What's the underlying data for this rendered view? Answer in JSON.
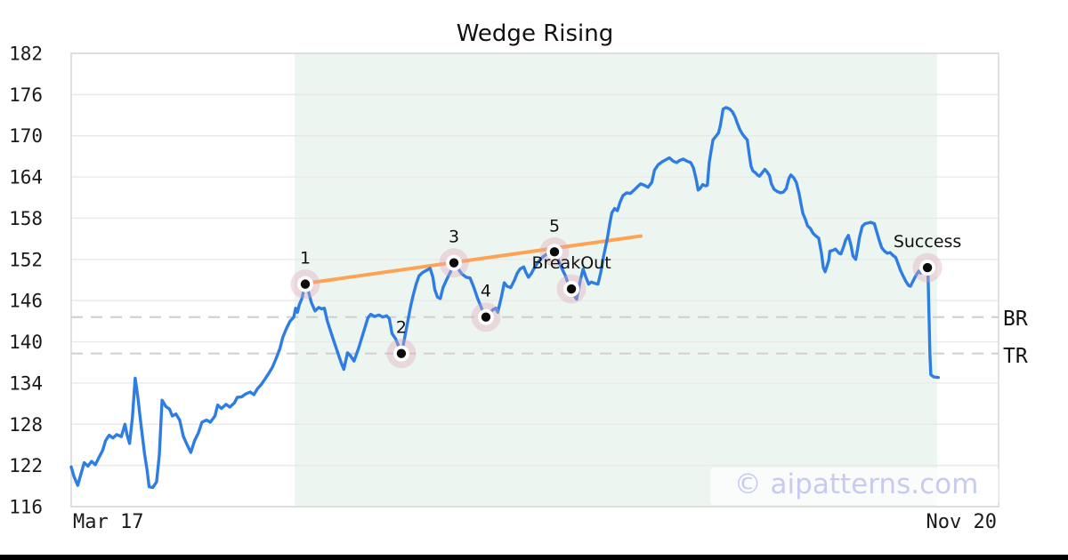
{
  "page": {
    "background": "#ffffff",
    "bottom_bar_color": "#000000"
  },
  "chart_data": {
    "type": "line",
    "title": "Wedge Rising",
    "x_axis": {
      "start_label": "Mar 17",
      "end_label": "Nov 20"
    },
    "y_axis": {
      "min": 116,
      "max": 182,
      "ticks": [
        182,
        176,
        170,
        164,
        158,
        152,
        146,
        140,
        134,
        128,
        122,
        116
      ]
    },
    "grid": true,
    "legend": "none",
    "watermark": "© aipatterns.com",
    "shaded_region": {
      "from_x": 0.2409,
      "to_x": 0.9338,
      "color": "#edf5f0"
    },
    "level_lines": [
      {
        "label": "BR",
        "value": 143.6
      },
      {
        "label": "TR",
        "value": 138.3
      }
    ],
    "trendline": {
      "color": "#ffa352",
      "from": [
        0.2524,
        148.5
      ],
      "to": [
        0.6142,
        155.4
      ]
    },
    "pattern_markers": [
      {
        "label": "1",
        "x": 0.2524,
        "value": 148.4
      },
      {
        "label": "2",
        "x": 0.356,
        "value": 138.3
      },
      {
        "label": "3",
        "x": 0.4127,
        "value": 151.5
      },
      {
        "label": "4",
        "x": 0.4472,
        "value": 143.6
      },
      {
        "label": "5",
        "x": 0.5211,
        "value": 153.1
      },
      {
        "label": "BreakOut",
        "x": 0.5394,
        "value": 147.7
      },
      {
        "label": "Success",
        "x": 0.9233,
        "value": 150.8
      }
    ],
    "series": [
      {
        "name": "price",
        "color": "#2e7de2",
        "points": [
          [
            0.0,
            121.8
          ],
          [
            0.003,
            120.4
          ],
          [
            0.007,
            119.1
          ],
          [
            0.011,
            121.0
          ],
          [
            0.014,
            122.4
          ],
          [
            0.018,
            121.9
          ],
          [
            0.022,
            122.6
          ],
          [
            0.026,
            122.1
          ],
          [
            0.03,
            123.2
          ],
          [
            0.034,
            124.2
          ],
          [
            0.037,
            125.6
          ],
          [
            0.041,
            126.4
          ],
          [
            0.045,
            126.0
          ],
          [
            0.049,
            126.5
          ],
          [
            0.054,
            126.2
          ],
          [
            0.058,
            128.0
          ],
          [
            0.06,
            126.6
          ],
          [
            0.063,
            125.2
          ],
          [
            0.066,
            129.0
          ],
          [
            0.069,
            134.7
          ],
          [
            0.072,
            131.8
          ],
          [
            0.075,
            128.3
          ],
          [
            0.079,
            123.8
          ],
          [
            0.082,
            121.2
          ],
          [
            0.084,
            118.9
          ],
          [
            0.088,
            118.8
          ],
          [
            0.092,
            119.6
          ],
          [
            0.095,
            123.5
          ],
          [
            0.098,
            131.5
          ],
          [
            0.102,
            130.6
          ],
          [
            0.106,
            130.2
          ],
          [
            0.109,
            129.2
          ],
          [
            0.113,
            129.5
          ],
          [
            0.117,
            128.6
          ],
          [
            0.121,
            126.2
          ],
          [
            0.125,
            125.0
          ],
          [
            0.129,
            123.9
          ],
          [
            0.133,
            125.6
          ],
          [
            0.137,
            126.7
          ],
          [
            0.141,
            128.3
          ],
          [
            0.146,
            128.6
          ],
          [
            0.15,
            128.3
          ],
          [
            0.155,
            129.2
          ],
          [
            0.158,
            130.8
          ],
          [
            0.162,
            130.3
          ],
          [
            0.167,
            130.9
          ],
          [
            0.171,
            130.5
          ],
          [
            0.176,
            131.1
          ],
          [
            0.179,
            131.9
          ],
          [
            0.184,
            132.0
          ],
          [
            0.188,
            132.4
          ],
          [
            0.193,
            132.7
          ],
          [
            0.197,
            132.3
          ],
          [
            0.201,
            133.2
          ],
          [
            0.205,
            133.8
          ],
          [
            0.209,
            134.6
          ],
          [
            0.213,
            135.4
          ],
          [
            0.217,
            136.3
          ],
          [
            0.221,
            137.6
          ],
          [
            0.225,
            139.0
          ],
          [
            0.228,
            140.6
          ],
          [
            0.232,
            141.9
          ],
          [
            0.236,
            143.0
          ],
          [
            0.24,
            143.6
          ],
          [
            0.242,
            144.9
          ],
          [
            0.244,
            144.3
          ],
          [
            0.246,
            145.4
          ],
          [
            0.249,
            146.4
          ],
          [
            0.252,
            148.4
          ],
          [
            0.256,
            147.2
          ],
          [
            0.259,
            145.7
          ],
          [
            0.263,
            144.5
          ],
          [
            0.267,
            145.0
          ],
          [
            0.27,
            144.8
          ],
          [
            0.273,
            144.9
          ],
          [
            0.276,
            143.1
          ],
          [
            0.28,
            141.4
          ],
          [
            0.284,
            139.8
          ],
          [
            0.288,
            138.2
          ],
          [
            0.291,
            137.0
          ],
          [
            0.294,
            136.0
          ],
          [
            0.298,
            138.4
          ],
          [
            0.301,
            138.0
          ],
          [
            0.305,
            137.2
          ],
          [
            0.31,
            139.1
          ],
          [
            0.315,
            141.3
          ],
          [
            0.32,
            143.5
          ],
          [
            0.323,
            144.0
          ],
          [
            0.327,
            143.7
          ],
          [
            0.332,
            143.9
          ],
          [
            0.336,
            143.6
          ],
          [
            0.34,
            143.8
          ],
          [
            0.343,
            143.4
          ],
          [
            0.346,
            141.2
          ],
          [
            0.35,
            140.4
          ],
          [
            0.353,
            139.4
          ],
          [
            0.356,
            138.3
          ],
          [
            0.359,
            140.2
          ],
          [
            0.363,
            143.0
          ],
          [
            0.366,
            145.2
          ],
          [
            0.369,
            146.9
          ],
          [
            0.372,
            148.4
          ],
          [
            0.375,
            149.6
          ],
          [
            0.379,
            150.1
          ],
          [
            0.383,
            150.4
          ],
          [
            0.387,
            150.7
          ],
          [
            0.39,
            149.4
          ],
          [
            0.392,
            147.6
          ],
          [
            0.395,
            146.5
          ],
          [
            0.398,
            146.3
          ],
          [
            0.401,
            147.9
          ],
          [
            0.405,
            149.1
          ],
          [
            0.409,
            150.2
          ],
          [
            0.413,
            151.5
          ],
          [
            0.417,
            150.7
          ],
          [
            0.421,
            149.9
          ],
          [
            0.426,
            149.4
          ],
          [
            0.43,
            149.3
          ],
          [
            0.434,
            148.0
          ],
          [
            0.438,
            146.4
          ],
          [
            0.441,
            145.4
          ],
          [
            0.444,
            144.4
          ],
          [
            0.447,
            143.6
          ],
          [
            0.451,
            144.2
          ],
          [
            0.455,
            144.7
          ],
          [
            0.458,
            144.9
          ],
          [
            0.46,
            144.3
          ],
          [
            0.464,
            146.6
          ],
          [
            0.467,
            148.6
          ],
          [
            0.47,
            148.1
          ],
          [
            0.474,
            147.9
          ],
          [
            0.478,
            149.0
          ],
          [
            0.481,
            150.0
          ],
          [
            0.484,
            150.6
          ],
          [
            0.488,
            150.9
          ],
          [
            0.49,
            150.2
          ],
          [
            0.493,
            149.4
          ],
          [
            0.496,
            149.9
          ],
          [
            0.5,
            150.9
          ],
          [
            0.504,
            151.7
          ],
          [
            0.508,
            152.3
          ],
          [
            0.512,
            152.7
          ],
          [
            0.516,
            153.0
          ],
          [
            0.521,
            153.1
          ],
          [
            0.525,
            152.0
          ],
          [
            0.529,
            150.7
          ],
          [
            0.533,
            149.6
          ],
          [
            0.535,
            148.8
          ],
          [
            0.539,
            147.7
          ],
          [
            0.542,
            146.8
          ],
          [
            0.545,
            146.2
          ],
          [
            0.549,
            149.0
          ],
          [
            0.552,
            150.6
          ],
          [
            0.555,
            149.4
          ],
          [
            0.558,
            148.4
          ],
          [
            0.561,
            148.7
          ],
          [
            0.565,
            148.5
          ],
          [
            0.568,
            148.4
          ],
          [
            0.571,
            150.1
          ],
          [
            0.574,
            152.4
          ],
          [
            0.578,
            155.0
          ],
          [
            0.581,
            157.4
          ],
          [
            0.583,
            158.8
          ],
          [
            0.586,
            159.4
          ],
          [
            0.589,
            159.1
          ],
          [
            0.592,
            160.4
          ],
          [
            0.595,
            161.3
          ],
          [
            0.599,
            161.7
          ],
          [
            0.603,
            161.6
          ],
          [
            0.607,
            162.1
          ],
          [
            0.61,
            162.5
          ],
          [
            0.614,
            163.0
          ],
          [
            0.618,
            162.8
          ],
          [
            0.622,
            162.5
          ],
          [
            0.626,
            163.2
          ],
          [
            0.629,
            165.0
          ],
          [
            0.633,
            165.8
          ],
          [
            0.637,
            166.2
          ],
          [
            0.641,
            166.5
          ],
          [
            0.645,
            166.8
          ],
          [
            0.649,
            166.3
          ],
          [
            0.653,
            166.1
          ],
          [
            0.656,
            166.4
          ],
          [
            0.66,
            166.6
          ],
          [
            0.664,
            166.3
          ],
          [
            0.668,
            166.1
          ],
          [
            0.671,
            165.3
          ],
          [
            0.674,
            163.6
          ],
          [
            0.676,
            162.1
          ],
          [
            0.678,
            162.3
          ],
          [
            0.681,
            162.9
          ],
          [
            0.684,
            162.7
          ],
          [
            0.686,
            162.8
          ],
          [
            0.688,
            166.1
          ],
          [
            0.69,
            167.8
          ],
          [
            0.692,
            169.4
          ],
          [
            0.695,
            169.9
          ],
          [
            0.698,
            170.4
          ],
          [
            0.7,
            171.5
          ],
          [
            0.703,
            173.9
          ],
          [
            0.706,
            174.1
          ],
          [
            0.71,
            173.9
          ],
          [
            0.713,
            173.5
          ],
          [
            0.716,
            172.7
          ],
          [
            0.718,
            171.9
          ],
          [
            0.721,
            170.9
          ],
          [
            0.724,
            170.2
          ],
          [
            0.727,
            169.7
          ],
          [
            0.729,
            169.4
          ],
          [
            0.731,
            167.4
          ],
          [
            0.733,
            165.6
          ],
          [
            0.735,
            164.9
          ],
          [
            0.738,
            164.6
          ],
          [
            0.74,
            164.3
          ],
          [
            0.742,
            164.1
          ],
          [
            0.745,
            164.6
          ],
          [
            0.748,
            165.1
          ],
          [
            0.75,
            164.8
          ],
          [
            0.753,
            164.2
          ],
          [
            0.755,
            163.0
          ],
          [
            0.758,
            162.2
          ],
          [
            0.761,
            161.9
          ],
          [
            0.765,
            161.7
          ],
          [
            0.768,
            161.8
          ],
          [
            0.771,
            162.3
          ],
          [
            0.774,
            163.8
          ],
          [
            0.776,
            164.3
          ],
          [
            0.779,
            163.9
          ],
          [
            0.782,
            163.2
          ],
          [
            0.785,
            161.5
          ],
          [
            0.787,
            160.0
          ],
          [
            0.789,
            158.7
          ],
          [
            0.792,
            157.7
          ],
          [
            0.794,
            156.9
          ],
          [
            0.797,
            156.5
          ],
          [
            0.8,
            155.8
          ],
          [
            0.803,
            155.4
          ],
          [
            0.806,
            155.1
          ],
          [
            0.809,
            152.9
          ],
          [
            0.811,
            150.8
          ],
          [
            0.813,
            150.2
          ],
          [
            0.815,
            151.0
          ],
          [
            0.817,
            151.9
          ],
          [
            0.818,
            153.2
          ],
          [
            0.821,
            153.3
          ],
          [
            0.824,
            153.5
          ],
          [
            0.826,
            153.2
          ],
          [
            0.828,
            152.9
          ],
          [
            0.83,
            152.8
          ],
          [
            0.833,
            153.9
          ],
          [
            0.835,
            154.8
          ],
          [
            0.838,
            155.5
          ],
          [
            0.841,
            154.0
          ],
          [
            0.843,
            152.5
          ],
          [
            0.846,
            152.0
          ],
          [
            0.848,
            153.5
          ],
          [
            0.85,
            155.2
          ],
          [
            0.853,
            156.8
          ],
          [
            0.856,
            157.2
          ],
          [
            0.859,
            157.3
          ],
          [
            0.862,
            157.4
          ],
          [
            0.866,
            157.2
          ],
          [
            0.868,
            156.3
          ],
          [
            0.871,
            154.9
          ],
          [
            0.874,
            153.7
          ],
          [
            0.877,
            153.2
          ],
          [
            0.88,
            152.9
          ],
          [
            0.883,
            153.0
          ],
          [
            0.886,
            152.6
          ],
          [
            0.889,
            152.3
          ],
          [
            0.891,
            151.6
          ],
          [
            0.894,
            150.5
          ],
          [
            0.897,
            149.6
          ],
          [
            0.9,
            148.8
          ],
          [
            0.903,
            148.2
          ],
          [
            0.905,
            148.1
          ],
          [
            0.908,
            148.9
          ],
          [
            0.911,
            149.7
          ],
          [
            0.914,
            150.3
          ],
          [
            0.916,
            150.0
          ],
          [
            0.919,
            150.2
          ],
          [
            0.923,
            150.8
          ],
          [
            0.924,
            149.5
          ],
          [
            0.925,
            144.0
          ],
          [
            0.926,
            138.0
          ],
          [
            0.927,
            135.2
          ],
          [
            0.93,
            134.9
          ],
          [
            0.935,
            134.8
          ]
        ]
      }
    ],
    "style": {
      "line_color": "#2e7de2",
      "trendline_color": "#ffa352",
      "grid_color": "#e9e9e9",
      "border_color": "#dcdcdc",
      "level_dash_color": "#d2d2d2",
      "marker_halo_color": "#dfa8ba",
      "marker_dot_color": "#0b0b0b",
      "watermark_color": "#c8cbef"
    }
  }
}
